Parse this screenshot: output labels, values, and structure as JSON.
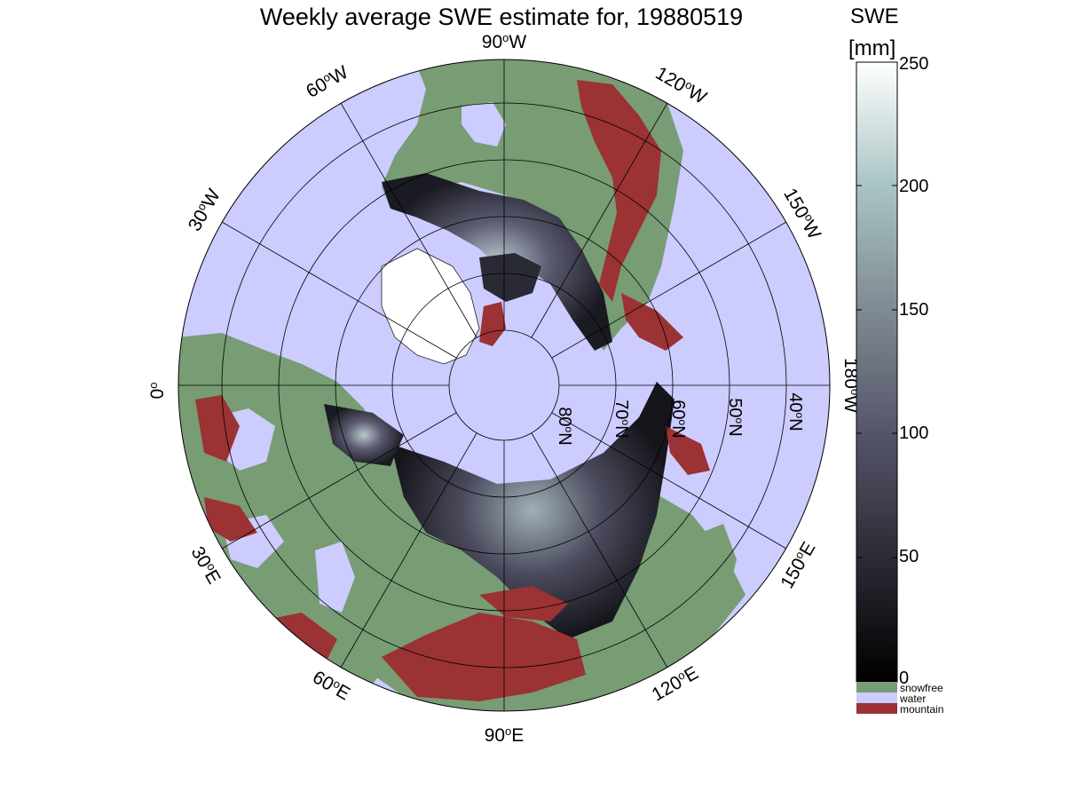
{
  "title": "Weekly average SWE estimate for, 19880519",
  "colorbar": {
    "title": "SWE",
    "unit": "[mm]",
    "range": [
      0,
      250
    ],
    "ticks": [
      "250",
      "200",
      "150",
      "100",
      "50",
      "0"
    ],
    "colors": [
      "#000000",
      "#2b2b35",
      "#55556a",
      "#7f8a92",
      "#a9c4c4",
      "#ffffff"
    ]
  },
  "legend": [
    {
      "label": "snowfree",
      "color": "#789c74"
    },
    {
      "label": "water",
      "color": "#ccccff"
    },
    {
      "label": "mountain",
      "color": "#9b3234"
    }
  ],
  "longitude_labels": {
    "lon90W": {
      "deg": "90",
      "dir": "W"
    },
    "lon60W": {
      "deg": "60",
      "dir": "W"
    },
    "lon30W": {
      "deg": "30",
      "dir": "W"
    },
    "lon0": {
      "deg": "0",
      "dir": ""
    },
    "lon30E": {
      "deg": "30",
      "dir": "E"
    },
    "lon60E": {
      "deg": "60",
      "dir": "E"
    },
    "lon90E": {
      "deg": "90",
      "dir": "E"
    },
    "lon120E": {
      "deg": "120",
      "dir": "E"
    },
    "lon150E": {
      "deg": "150",
      "dir": "E"
    },
    "lon180W": {
      "deg": "180",
      "dir": "W"
    },
    "lon150W": {
      "deg": "150",
      "dir": "W"
    },
    "lon120W": {
      "deg": "120",
      "dir": "W"
    }
  },
  "latitude_labels": {
    "lat80N": {
      "deg": "80",
      "dir": "N"
    },
    "lat70N": {
      "deg": "70",
      "dir": "N"
    },
    "lat60N": {
      "deg": "60",
      "dir": "N"
    },
    "lat50N": {
      "deg": "50",
      "dir": "N"
    },
    "lat40N": {
      "deg": "40",
      "dir": "N"
    }
  },
  "colors": {
    "water": "#ccccff",
    "land": "#789c74",
    "mountain": "#9b3234",
    "snow_low": "#1a1a22",
    "snow_high": "#b8c8cc"
  }
}
